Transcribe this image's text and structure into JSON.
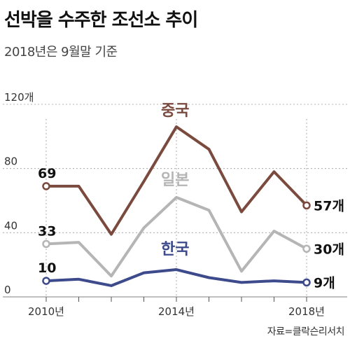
{
  "title": "선박을 수주한 조선소 추이",
  "subtitle": "2018년은 9월말 기준",
  "source": "자료=클락슨리서치",
  "colors": {
    "china": "#7a4a3e",
    "japan": "#b5b5b5",
    "korea": "#3d4a8c",
    "grid": "#9a9a9a"
  },
  "chart_data": {
    "type": "line",
    "title": "선박을 수주한 조선소 추이",
    "subtitle": "2018년은 9월말 기준",
    "x": [
      2010,
      2011,
      2012,
      2013,
      2014,
      2015,
      2016,
      2017,
      2018
    ],
    "xtick_labels": [
      "2010년",
      "2014년",
      "2018년"
    ],
    "xtick_values": [
      2010,
      2014,
      2018
    ],
    "ytick_labels": [
      "0",
      "40",
      "80",
      "120개"
    ],
    "ytick_values": [
      0,
      40,
      80,
      120
    ],
    "ylim": [
      0,
      120
    ],
    "grid": true,
    "series": [
      {
        "name": "중국",
        "key": "china",
        "values": [
          69,
          69,
          39,
          72,
          106,
          92,
          53,
          78,
          57
        ],
        "labels": [
          {
            "index": 0,
            "text": "69"
          },
          {
            "index": 8,
            "text": "57개"
          }
        ]
      },
      {
        "name": "일본",
        "key": "japan",
        "values": [
          33,
          34,
          13,
          43,
          62,
          54,
          16,
          41,
          30
        ],
        "labels": [
          {
            "index": 0,
            "text": "33"
          },
          {
            "index": 8,
            "text": "30개"
          }
        ]
      },
      {
        "name": "한국",
        "key": "korea",
        "values": [
          10,
          11,
          7,
          15,
          17,
          12,
          9,
          10,
          9
        ],
        "labels": [
          {
            "index": 0,
            "text": "10"
          },
          {
            "index": 8,
            "text": "9개"
          }
        ]
      }
    ]
  }
}
